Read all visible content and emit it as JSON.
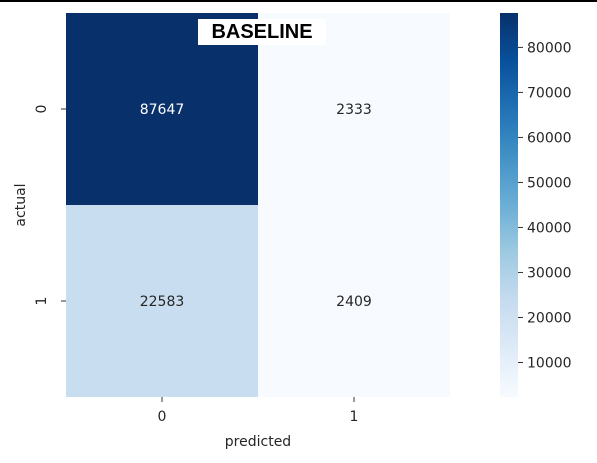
{
  "chart_data": {
    "type": "heatmap",
    "title": "BASELINE",
    "xlabel": "predicted",
    "ylabel": "actual",
    "x_categories": [
      "0",
      "1"
    ],
    "y_categories": [
      "0",
      "1"
    ],
    "values": [
      [
        87647,
        2333
      ],
      [
        22583,
        2409
      ]
    ],
    "colormap": "Blues",
    "colorbar": {
      "min": 2333,
      "max": 87647,
      "ticks": [
        10000,
        20000,
        30000,
        40000,
        50000,
        60000,
        70000,
        80000
      ],
      "tick_labels": [
        "10000",
        "20000",
        "30000",
        "40000",
        "50000",
        "60000",
        "70000",
        "80000"
      ]
    },
    "annotations": true,
    "grid": false
  }
}
